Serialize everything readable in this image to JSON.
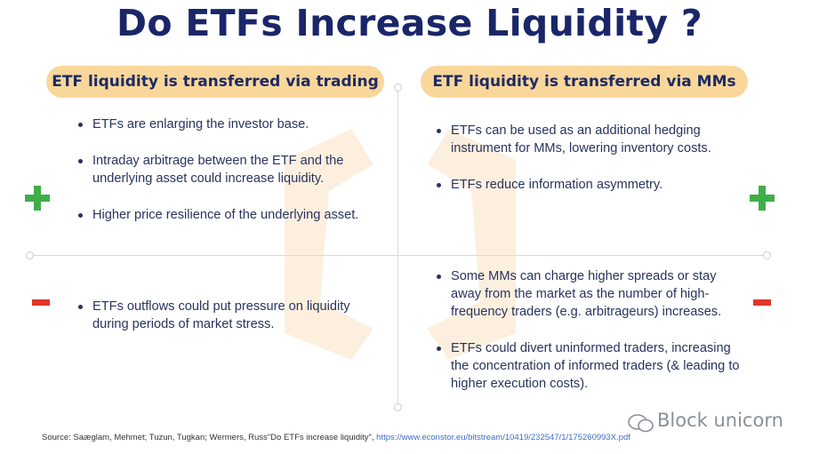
{
  "title": "Do ETFs Increase Liquidity ?",
  "columns": {
    "left_heading": "ETF liquidity is transferred via trading",
    "right_heading": "ETF liquidity is transferred via MMs"
  },
  "quadrants": {
    "top_left": [
      "ETFs are enlarging the investor base.",
      "Intraday arbitrage between the ETF and the underlying asset could increase liquidity.",
      "Higher price resilience of the underlying asset."
    ],
    "top_right": [
      "ETFs can be used as an additional hedging instrument for MMs, lowering inventory costs.",
      "ETFs reduce information asymmetry."
    ],
    "bottom_left": [
      "ETFs outflows could put pressure on liquidity during periods of market stress."
    ],
    "bottom_right": [
      "Some MMs can charge higher spreads or stay away from the market as the number of  high-frequency traders (e.g. arbitrageurs) increases.",
      "ETFs could divert uninformed traders, increasing the concentration of informed traders (& leading to higher execution costs)."
    ]
  },
  "source": {
    "text": "Source: Saæglam, Mehmet; Tuzun, Tugkan; Wermers, Russ\"Do ETFs increase liquidity\", ",
    "url": "https://www.econstor.eu/bitstream/10419/232547/1/175260993X.pdf"
  },
  "brand": "Block unicorn",
  "colors": {
    "title": "#1a2668",
    "pill": "#f9d79a",
    "plus": "#3fae49",
    "minus": "#e0362b",
    "text": "#28335e"
  },
  "icons": {
    "positive": "plus-icon",
    "negative": "minus-icon"
  }
}
